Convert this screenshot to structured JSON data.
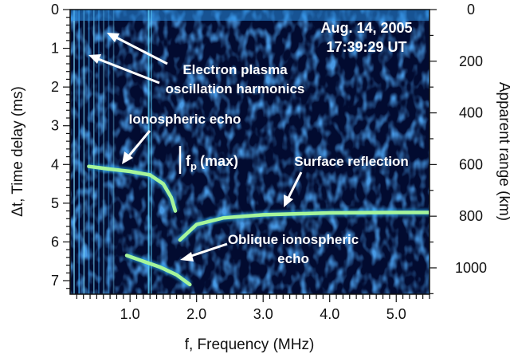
{
  "chart_data": {
    "type": "heatmap",
    "colormap": [
      "#000a2a",
      "#0a2e7a",
      "#1f6fd0",
      "#46b8ff",
      "#9ff7a0"
    ],
    "xlabel": "f, Frequency (MHz)",
    "ylabel_left": "Δt, Time delay (ms)",
    "ylabel_right": "Apparent range (km)",
    "xlim": [
      0.1,
      5.5
    ],
    "ylim_left": [
      0,
      7.35
    ],
    "ylim_right": [
      0,
      1102
    ],
    "x_ticks": [
      {
        "value": 1.0,
        "label": "1.0"
      },
      {
        "value": 2.0,
        "label": "2.0"
      },
      {
        "value": 3.0,
        "label": "3.0"
      },
      {
        "value": 4.0,
        "label": "4.0"
      },
      {
        "value": 5.0,
        "label": "5.0"
      }
    ],
    "y_ticks_left": [
      {
        "value": 0,
        "label": "0"
      },
      {
        "value": 1,
        "label": "1"
      },
      {
        "value": 2,
        "label": "2"
      },
      {
        "value": 3,
        "label": "3"
      },
      {
        "value": 4,
        "label": "4"
      },
      {
        "value": 5,
        "label": "5"
      },
      {
        "value": 6,
        "label": "6"
      },
      {
        "value": 7,
        "label": "7"
      }
    ],
    "y_ticks_right": [
      {
        "value": 0,
        "label": "0"
      },
      {
        "value": 200,
        "label": "200"
      },
      {
        "value": 400,
        "label": "400"
      },
      {
        "value": 600,
        "label": "600"
      },
      {
        "value": 800,
        "label": "800"
      },
      {
        "value": 1000,
        "label": "1000"
      }
    ],
    "date": "Aug. 14, 2005",
    "time": "17:39:29 UT",
    "features": {
      "ionospheric_echo": [
        [
          0.38,
          4.05
        ],
        [
          0.7,
          4.12
        ],
        [
          1.0,
          4.18
        ],
        [
          1.3,
          4.27
        ],
        [
          1.5,
          4.5
        ],
        [
          1.62,
          4.85
        ],
        [
          1.68,
          5.2
        ]
      ],
      "surface_reflection": [
        [
          1.75,
          5.95
        ],
        [
          2.0,
          5.55
        ],
        [
          2.4,
          5.38
        ],
        [
          3.0,
          5.3
        ],
        [
          4.0,
          5.25
        ],
        [
          5.0,
          5.24
        ],
        [
          5.5,
          5.24
        ]
      ],
      "oblique_echo": [
        [
          0.95,
          6.35
        ],
        [
          1.2,
          6.5
        ],
        [
          1.45,
          6.65
        ],
        [
          1.7,
          6.85
        ],
        [
          1.9,
          7.1
        ]
      ]
    },
    "annotations": [
      {
        "id": "plasma",
        "lines": [
          "Electron plasma",
          "oscillation harmonics"
        ]
      },
      {
        "id": "iono",
        "text": "Ionospheric echo"
      },
      {
        "id": "fp",
        "main": "f",
        "sub": "p",
        "rest": "(max)"
      },
      {
        "id": "surface",
        "text": "Surface reflection"
      },
      {
        "id": "oblique",
        "lines": [
          "Oblique ionospheric",
          "echo"
        ]
      }
    ]
  }
}
